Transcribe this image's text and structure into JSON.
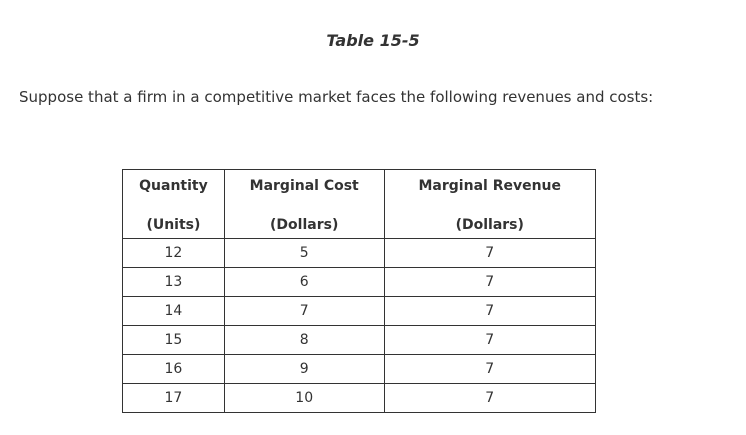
{
  "title": "Table 15-5",
  "intro": "Suppose that a firm in a competitive market faces the following revenues and costs:",
  "table": {
    "headers": [
      {
        "line1": "Quantity",
        "line2": "(Units)"
      },
      {
        "line1": "Marginal Cost",
        "line2": "(Dollars)"
      },
      {
        "line1": "Marginal Revenue",
        "line2": "(Dollars)"
      }
    ],
    "rows": [
      [
        "12",
        "5",
        "7"
      ],
      [
        "13",
        "6",
        "7"
      ],
      [
        "14",
        "7",
        "7"
      ],
      [
        "15",
        "8",
        "7"
      ],
      [
        "16",
        "9",
        "7"
      ],
      [
        "17",
        "10",
        "7"
      ]
    ]
  }
}
